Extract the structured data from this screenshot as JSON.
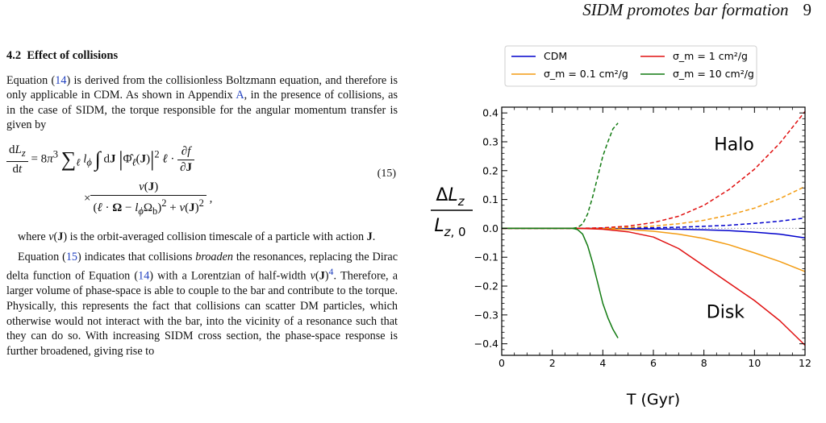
{
  "running_head": {
    "title": "SIDM promotes bar formation",
    "page_number": "9"
  },
  "section": {
    "number": "4.2",
    "title": "Effect of collisions"
  },
  "paragraphs": {
    "p1": {
      "a": "Equation (",
      "ref1": "14",
      "b": ") is derived from the collisionless Boltzmann equation, and therefore is only applicable in CDM. As shown in Appendix ",
      "ref2": "A",
      "c": ", in the presence of collisions, as in the case of SIDM, the torque responsible for the angular momentum transfer is given by"
    },
    "equation_number": "(15)",
    "p2": {
      "a": "where ",
      "b": " is the orbit-averaged collision timescale of a particle with action "
    },
    "p3": {
      "a": "Equation (",
      "ref1": "15",
      "b": ") indicates that collisions ",
      "emph": "broaden",
      "c": " the resonances, replacing the Dirac delta function of Equation (",
      "ref2": "14",
      "d": ") with a Lorentzian of half-width ",
      "footnote": "4",
      "e": ". Therefore, a larger volume of phase-space is able to couple to the bar and contribute to the torque. Physically, this represents the fact that collisions can scatter DM particles, which otherwise would not interact with the bar, into the vicinity of a resonance such that they can do so. With increasing SIDM cross section, the phase-space response is further broadened, giving rise to"
    }
  },
  "colors": {
    "CDM": "#0000cc",
    "s01": "#f39c12",
    "s1": "#e01010",
    "s10": "#117a11",
    "text_ref": "#1f3fbf"
  },
  "chart_data": {
    "type": "line",
    "xlabel": "T (Gyr)",
    "ylabel": "ΔL_z / L_z,0",
    "xlim": [
      0,
      12
    ],
    "ylim": [
      -0.44,
      0.42
    ],
    "xticks": [
      0,
      2,
      4,
      6,
      8,
      10,
      12
    ],
    "yticks": [
      -0.4,
      -0.3,
      -0.2,
      -0.1,
      0.0,
      0.1,
      0.2,
      0.3,
      0.4
    ],
    "ytick_labels": [
      "−0.4",
      "−0.3",
      "−0.2",
      "−0.1",
      "0.0",
      "0.1",
      "0.2",
      "0.3",
      "0.4"
    ],
    "grid": false,
    "legend": {
      "placement": "top",
      "columns": 2
    },
    "annotations": [
      {
        "text": "Halo",
        "x": 8.4,
        "y": 0.27
      },
      {
        "text": "Disk",
        "x": 8.1,
        "y": -0.31
      }
    ],
    "series": [
      {
        "name": "CDM",
        "color_key": "CDM",
        "halo": [
          [
            0,
            0
          ],
          [
            2,
            0
          ],
          [
            3,
            0
          ],
          [
            4,
            0
          ],
          [
            5,
            0.001
          ],
          [
            6,
            0.002
          ],
          [
            7,
            0.004
          ],
          [
            8,
            0.007
          ],
          [
            9,
            0.011
          ],
          [
            10,
            0.017
          ],
          [
            11,
            0.025
          ],
          [
            12,
            0.036
          ]
        ],
        "disk": [
          [
            0,
            0
          ],
          [
            2,
            0
          ],
          [
            3,
            0
          ],
          [
            4,
            0
          ],
          [
            5,
            -0.001
          ],
          [
            6,
            -0.002
          ],
          [
            7,
            -0.003
          ],
          [
            8,
            -0.005
          ],
          [
            9,
            -0.008
          ],
          [
            10,
            -0.013
          ],
          [
            11,
            -0.02
          ],
          [
            12,
            -0.033
          ]
        ]
      },
      {
        "name": "σ_m = 0.1 cm²/g",
        "color_key": "s01",
        "halo": [
          [
            0,
            0
          ],
          [
            3,
            0
          ],
          [
            4,
            0.001
          ],
          [
            5,
            0.003
          ],
          [
            6,
            0.008
          ],
          [
            7,
            0.016
          ],
          [
            8,
            0.028
          ],
          [
            9,
            0.046
          ],
          [
            10,
            0.07
          ],
          [
            11,
            0.103
          ],
          [
            12,
            0.145
          ]
        ],
        "disk": [
          [
            0,
            0
          ],
          [
            3,
            0
          ],
          [
            4,
            -0.001
          ],
          [
            5,
            -0.004
          ],
          [
            6,
            -0.01
          ],
          [
            7,
            -0.02
          ],
          [
            8,
            -0.035
          ],
          [
            9,
            -0.057
          ],
          [
            10,
            -0.085
          ],
          [
            11,
            -0.115
          ],
          [
            12,
            -0.15
          ]
        ]
      },
      {
        "name": "σ_m = 1 cm²/g",
        "color_key": "s1",
        "halo": [
          [
            0,
            0
          ],
          [
            3,
            0
          ],
          [
            4,
            0.002
          ],
          [
            5,
            0.008
          ],
          [
            6,
            0.02
          ],
          [
            7,
            0.042
          ],
          [
            8,
            0.08
          ],
          [
            9,
            0.135
          ],
          [
            10,
            0.205
          ],
          [
            11,
            0.295
          ],
          [
            12,
            0.405
          ]
        ],
        "disk": [
          [
            0,
            0
          ],
          [
            3,
            0
          ],
          [
            4,
            -0.003
          ],
          [
            5,
            -0.012
          ],
          [
            6,
            -0.03
          ],
          [
            7,
            -0.07
          ],
          [
            8,
            -0.13
          ],
          [
            9,
            -0.19
          ],
          [
            10,
            -0.25
          ],
          [
            11,
            -0.32
          ],
          [
            12,
            -0.405
          ]
        ]
      },
      {
        "name": "σ_m = 10 cm²/g",
        "color_key": "s10",
        "halo": [
          [
            0,
            0
          ],
          [
            2.8,
            0
          ],
          [
            3.0,
            0.003
          ],
          [
            3.2,
            0.015
          ],
          [
            3.4,
            0.05
          ],
          [
            3.6,
            0.11
          ],
          [
            3.8,
            0.18
          ],
          [
            4.0,
            0.25
          ],
          [
            4.2,
            0.3
          ],
          [
            4.4,
            0.345
          ],
          [
            4.6,
            0.365
          ]
        ],
        "disk": [
          [
            0,
            0
          ],
          [
            2.8,
            0
          ],
          [
            3.0,
            -0.004
          ],
          [
            3.2,
            -0.02
          ],
          [
            3.4,
            -0.06
          ],
          [
            3.6,
            -0.12
          ],
          [
            3.8,
            -0.19
          ],
          [
            4.0,
            -0.26
          ],
          [
            4.2,
            -0.31
          ],
          [
            4.4,
            -0.35
          ],
          [
            4.6,
            -0.38
          ]
        ]
      }
    ]
  }
}
